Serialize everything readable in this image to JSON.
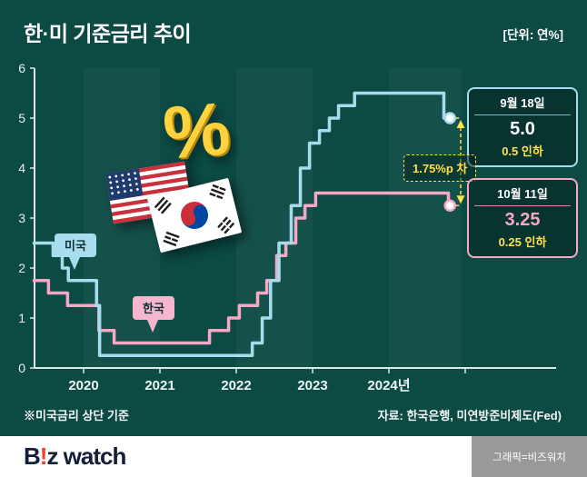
{
  "header": {
    "title": "한·미 기준금리 추이",
    "unit_label": "[단위: 연%]"
  },
  "colors": {
    "background": "#0c4a44",
    "us_line": "#a6dcec",
    "kr_line": "#f6a8c5",
    "accent_yellow": "#ffe14d"
  },
  "chart_data": {
    "type": "line",
    "step": true,
    "title": "한·미 기준금리 추이",
    "unit": "연%",
    "ylim": [
      0,
      6
    ],
    "y_ticks": [
      0,
      1,
      2,
      3,
      4,
      5,
      6
    ],
    "x_ticks": [
      {
        "x": 2020,
        "label": "2020"
      },
      {
        "x": 2021,
        "label": "2021"
      },
      {
        "x": 2022,
        "label": "2022"
      },
      {
        "x": 2023,
        "label": "2023"
      },
      {
        "x": 2024,
        "label": "2024년"
      },
      {
        "x": 2025,
        "label": ""
      }
    ],
    "year_bands": [
      [
        2020,
        2021
      ],
      [
        2022,
        2023
      ],
      [
        2024,
        2024.95
      ]
    ],
    "series": [
      {
        "name": "한국",
        "color": "#f6a8c5",
        "points": [
          [
            2019.35,
            1.75
          ],
          [
            2019.54,
            1.5
          ],
          [
            2019.79,
            1.25
          ],
          [
            2020.2,
            0.75
          ],
          [
            2020.4,
            0.5
          ],
          [
            2021.65,
            0.75
          ],
          [
            2021.9,
            1.0
          ],
          [
            2022.04,
            1.25
          ],
          [
            2022.28,
            1.5
          ],
          [
            2022.4,
            1.75
          ],
          [
            2022.53,
            2.25
          ],
          [
            2022.65,
            2.5
          ],
          [
            2022.78,
            3.0
          ],
          [
            2022.9,
            3.25
          ],
          [
            2023.04,
            3.5
          ],
          [
            2024.78,
            3.25
          ],
          [
            2024.8,
            3.25
          ]
        ]
      },
      {
        "name": "미국",
        "color": "#a6dcec",
        "points": [
          [
            2019.35,
            2.5
          ],
          [
            2019.6,
            2.25
          ],
          [
            2019.72,
            2.0
          ],
          [
            2019.8,
            1.75
          ],
          [
            2020.17,
            1.25
          ],
          [
            2020.21,
            0.25
          ],
          [
            2022.21,
            0.5
          ],
          [
            2022.34,
            1.0
          ],
          [
            2022.45,
            1.75
          ],
          [
            2022.56,
            2.5
          ],
          [
            2022.72,
            3.25
          ],
          [
            2022.84,
            4.0
          ],
          [
            2022.96,
            4.5
          ],
          [
            2023.09,
            4.75
          ],
          [
            2023.22,
            5.0
          ],
          [
            2023.34,
            5.25
          ],
          [
            2023.55,
            5.5
          ],
          [
            2024.72,
            5.0
          ],
          [
            2024.8,
            5.0
          ]
        ]
      }
    ]
  },
  "annotations": {
    "us": {
      "date": "9월 18일",
      "value": "5.0",
      "change": "0.5 인하"
    },
    "kr": {
      "date": "10월 11일",
      "value": "3.25",
      "change": "0.25 인하"
    },
    "gap": "1.75%p 차",
    "us_tag": "미국",
    "kr_tag": "한국"
  },
  "decoration": {
    "percent_symbol": "%"
  },
  "footnote": "※미국금리 상단 기준",
  "source": "자료: 한국은행, 미연방준비제도(Fed)",
  "footer": {
    "logo_parts": [
      "B",
      "!",
      "z watch"
    ],
    "credit": "그래픽=비즈워치"
  }
}
